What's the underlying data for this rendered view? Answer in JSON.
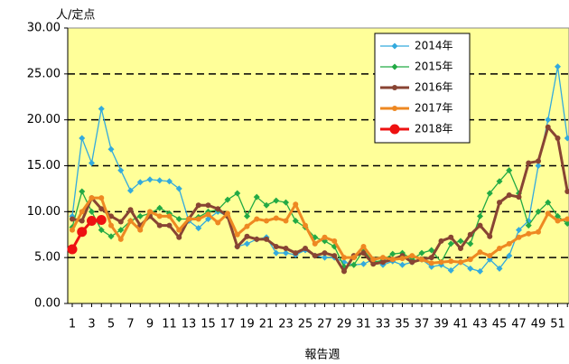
{
  "chart_data": {
    "type": "line",
    "y_label": "人/定点",
    "x_label": "報告週",
    "categories": [
      1,
      null,
      3,
      null,
      5,
      null,
      7,
      null,
      9,
      null,
      11,
      null,
      13,
      null,
      15,
      null,
      17,
      null,
      19,
      null,
      21,
      null,
      23,
      null,
      25,
      null,
      27,
      null,
      29,
      null,
      31,
      null,
      33,
      null,
      35,
      null,
      37,
      null,
      39,
      null,
      41,
      null,
      43,
      null,
      45,
      null,
      47,
      null,
      49,
      null,
      51,
      null
    ],
    "ylim": [
      0,
      30
    ],
    "yticks": [
      {
        "value": 0,
        "label": "0.00"
      },
      {
        "value": 5,
        "label": "5.00"
      },
      {
        "value": 10,
        "label": "10.00"
      },
      {
        "value": 15,
        "label": "15.00"
      },
      {
        "value": 20,
        "label": "20.00"
      },
      {
        "value": 25,
        "label": "25.00"
      },
      {
        "value": 30,
        "label": "30.00"
      }
    ],
    "grid": true,
    "background": "#ffff99",
    "legend": "upper right",
    "series": [
      {
        "name": "2014年",
        "color": "#33aadd",
        "marker": "diamond",
        "line_width": 1.3,
        "values": [
          9.5,
          18,
          15.3,
          21.2,
          16.8,
          14.5,
          12.3,
          13.2,
          13.5,
          13.4,
          13.3,
          12.5,
          9,
          8.2,
          9.2,
          10,
          9.5,
          6.2,
          6.5,
          7,
          7.2,
          5.5,
          5.5,
          5.3,
          5.8,
          5.2,
          5,
          5,
          4.5,
          4.2,
          4.3,
          4.8,
          4.2,
          4.6,
          4.2,
          4.5,
          4.8,
          4,
          4.2,
          3.6,
          4.5,
          3.8,
          3.5,
          4.8,
          3.8,
          5.2,
          8,
          9,
          15,
          20,
          25.8,
          18
        ]
      },
      {
        "name": "2015年",
        "color": "#22aa44",
        "marker": "diamond",
        "line_width": 1.3,
        "values": [
          8.3,
          12.2,
          10,
          8,
          7.3,
          8,
          9,
          9.5,
          9.8,
          10.4,
          9.8,
          9.2,
          9.2,
          9.4,
          10,
          10.2,
          11.3,
          12,
          9.5,
          11.6,
          10.7,
          11.2,
          11,
          9,
          8.3,
          7.2,
          6.8,
          6.2,
          4,
          4.2,
          5.8,
          4.5,
          4.7,
          5.4,
          5.5,
          4.8,
          5.5,
          5.8,
          4.5,
          6.5,
          6.8,
          6.5,
          9.5,
          12,
          13.3,
          14.5,
          12,
          8.5,
          10,
          11,
          9.5,
          8.7
        ]
      },
      {
        "name": "2016年",
        "color": "#884433",
        "marker": "circle",
        "line_width": 3,
        "values": [
          9.2,
          9,
          11.5,
          10.3,
          9.5,
          8.9,
          10.2,
          8.5,
          9.5,
          8.5,
          8.5,
          7.2,
          9.2,
          10.7,
          10.7,
          10.3,
          9.5,
          6.2,
          7.3,
          7,
          7,
          6.2,
          6,
          5.5,
          6,
          5.2,
          5.5,
          5.2,
          3.5,
          5.2,
          5.5,
          4.3,
          4.5,
          4.8,
          5.2,
          4.5,
          4.8,
          5,
          6.8,
          7.2,
          6,
          7.5,
          8.5,
          7.3,
          11,
          11.8,
          11.6,
          15.3,
          15.5,
          19.2,
          18,
          12.2
        ]
      },
      {
        "name": "2017年",
        "color": "#ee8822",
        "marker": "circle",
        "line_width": 3,
        "values": [
          8,
          10,
          11.5,
          11.5,
          8.5,
          7,
          9,
          8,
          10,
          9.5,
          9.5,
          8,
          9.2,
          9.2,
          9.7,
          8.8,
          9.8,
          7.5,
          8.4,
          9.2,
          9,
          9.3,
          9,
          10.8,
          8.5,
          6.5,
          7.2,
          6.8,
          5,
          5,
          6.2,
          4.8,
          5,
          4.8,
          4.9,
          5.2,
          4.8,
          4.4,
          4.5,
          4.6,
          4.5,
          4.8,
          5.6,
          5.2,
          6,
          6.5,
          7.2,
          7.6,
          7.8,
          9.8,
          9,
          9.2
        ]
      },
      {
        "name": "2018年",
        "color": "#ee1111",
        "marker": "bigcircle",
        "line_width": 3,
        "values": [
          5.9,
          7.8,
          9,
          9.1,
          null,
          null,
          null,
          null,
          null,
          null,
          null,
          null,
          null,
          null,
          null,
          null,
          null,
          null,
          null,
          null,
          null,
          null,
          null,
          null,
          null,
          null,
          null,
          null,
          null,
          null,
          null,
          null,
          null,
          null,
          null,
          null,
          null,
          null,
          null,
          null,
          null,
          null,
          null,
          null,
          null,
          null,
          null,
          null,
          null,
          null,
          null,
          null
        ]
      }
    ]
  }
}
